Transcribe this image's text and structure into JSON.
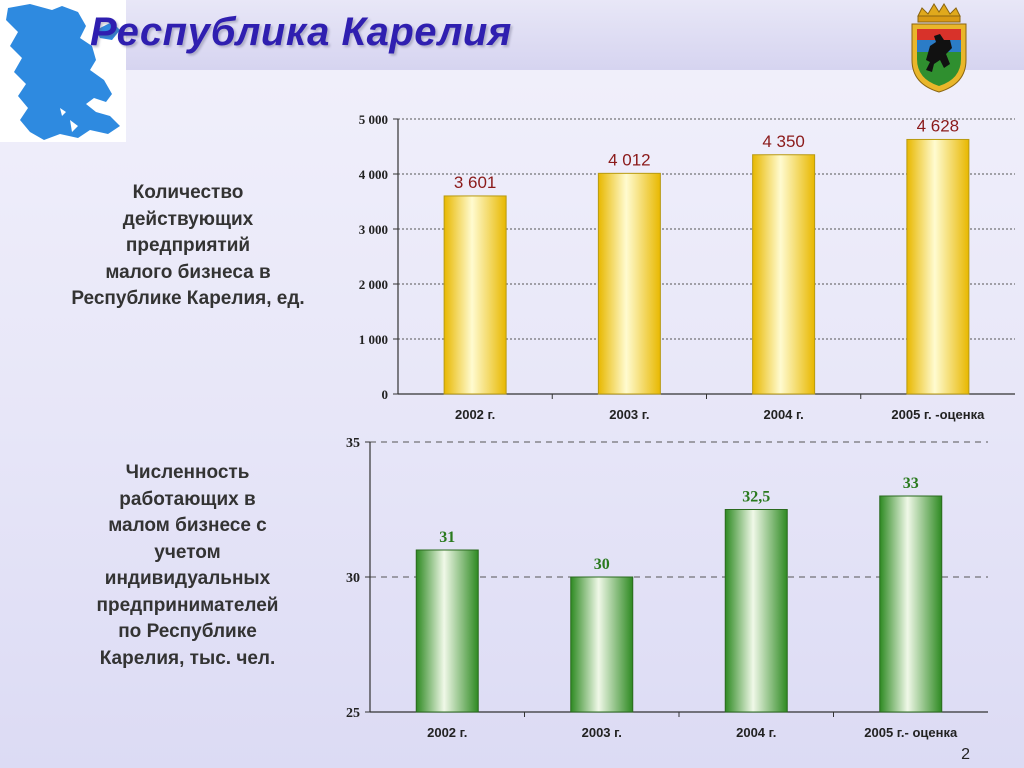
{
  "title": "Республика Карелия",
  "page_number": "2",
  "colors": {
    "title": "#2f1fb0",
    "bar1_fill": "#f5d63a",
    "bar1_label": "#8b1a1a",
    "bar2_fill": "#3f9a2e",
    "bar2_label": "#2a7a1e",
    "map": "#2e8ae0"
  },
  "icons": {
    "map": "karelia-map-icon",
    "coat": "coat-of-arms-icon"
  },
  "chart_data": [
    {
      "type": "bar",
      "title": "Количество действующих предприятий малого бизнеса в Республике Карелия, ед.",
      "title_lines": [
        "Количество",
        "действующих",
        "предприятий",
        "малого бизнеса в",
        "Республике Карелия, ед."
      ],
      "categories": [
        "2002 г.",
        "2003 г.",
        "2004 г.",
        "2005 г. -оценка"
      ],
      "values": [
        3601,
        4012,
        4350,
        4628
      ],
      "data_labels": [
        "3 601",
        "4 012",
        "4 350",
        "4 628"
      ],
      "ylim": [
        0,
        5000
      ],
      "yticks": [
        0,
        1000,
        2000,
        3000,
        4000,
        5000
      ],
      "ytick_labels": [
        "0",
        "1 000",
        "2 000",
        "3 000",
        "4 000",
        "5 000"
      ],
      "grid": true
    },
    {
      "type": "bar",
      "title": "Численность работающих в малом бизнесе с учетом индивидуальных предпринимателей по Республике Карелия, тыс. чел.",
      "title_lines": [
        "Численность",
        "работающих в",
        "малом бизнесе  с",
        "учетом",
        "индивидуальных",
        "предпринимателей",
        "по Республике",
        "Карелия, тыс. чел."
      ],
      "categories": [
        "2002 г.",
        "2003 г.",
        "2004 г.",
        "2005 г.- оценка"
      ],
      "values": [
        31,
        30,
        32.5,
        33
      ],
      "data_labels": [
        "31",
        "30",
        "32,5",
        "33"
      ],
      "ylim": [
        25,
        35
      ],
      "yticks": [
        25,
        30,
        35
      ],
      "ytick_labels": [
        "25",
        "30",
        "35"
      ],
      "grid": true
    }
  ]
}
